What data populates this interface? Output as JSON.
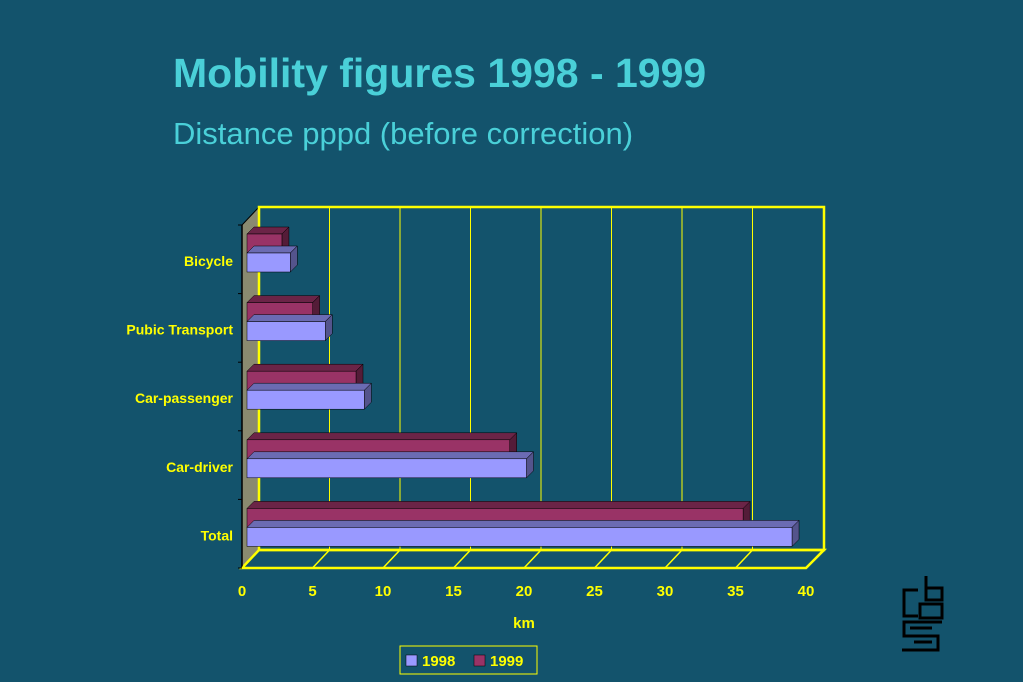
{
  "slide": {
    "title": "Mobility figures 1998 - 1999",
    "subtitle": "Distance pppd (before correction)"
  },
  "colors": {
    "background": "#13536c",
    "title": "#4ad0d8",
    "axis": "#ffff00",
    "labels": "#ffff00",
    "series_1998": "#9999ff",
    "series_1999": "#993366"
  },
  "logo": {
    "icon": "cbs-logo-icon"
  },
  "chart_data": {
    "type": "bar",
    "orientation": "horizontal",
    "categories": [
      "Bicycle",
      "Pubic Transport",
      "Car-passenger",
      "Car-driver",
      "Total"
    ],
    "series": [
      {
        "name": "1998",
        "values": [
          3.1,
          5.6,
          8.4,
          20.0,
          39.0
        ]
      },
      {
        "name": "1999",
        "values": [
          2.5,
          4.7,
          7.8,
          18.8,
          35.5
        ]
      }
    ],
    "xlabel": "km",
    "ylabel": "",
    "xlim": [
      0,
      40
    ],
    "xticks": [
      "0",
      "5",
      "10",
      "15",
      "20",
      "25",
      "30",
      "35",
      "40"
    ],
    "grid": true,
    "legend_position": "bottom"
  }
}
